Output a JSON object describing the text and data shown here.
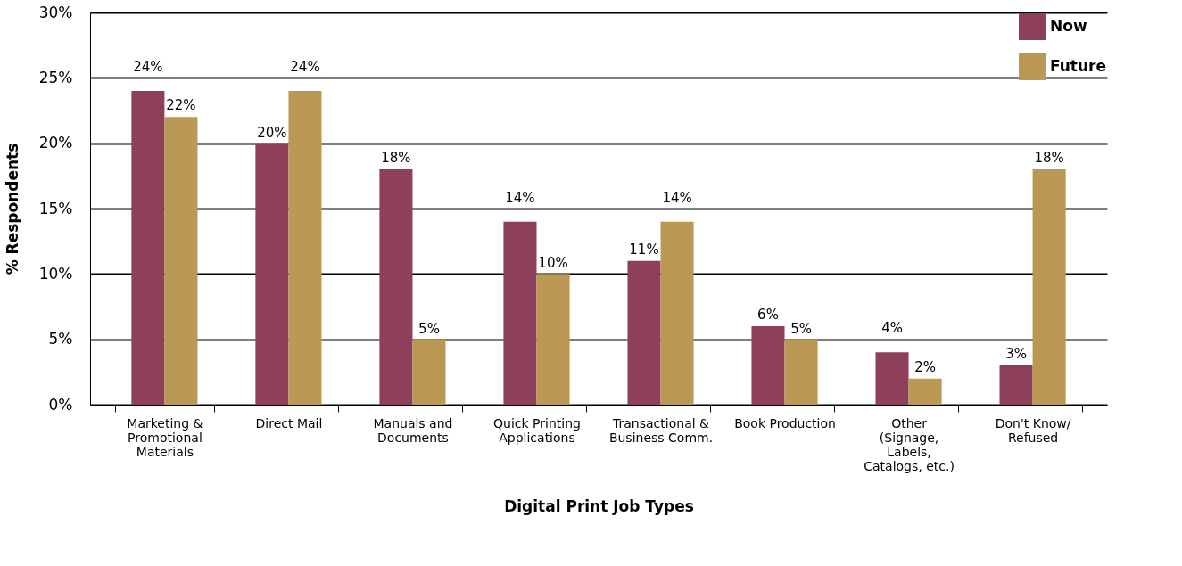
{
  "chart_data": {
    "type": "bar",
    "xlabel": "Digital Print Job Types",
    "ylabel": "% Respondents",
    "categories": [
      "Marketing &\nPromotional\nMaterials",
      "Direct Mail",
      "Manuals and\nDocuments",
      "Quick Printing\nApplications",
      "Transactional &\nBusiness Comm.",
      "Book Production",
      "Other\n(Signage,\nLabels,\nCatalogs, etc.)",
      "Don't Know/\nRefused"
    ],
    "series": [
      {
        "name": "Now",
        "color": "#8e3f5a",
        "values": [
          24,
          20,
          18,
          14,
          11,
          6,
          4,
          3
        ],
        "value_labels": [
          "24%",
          "20%",
          "18%",
          "14%",
          "11%",
          "6%",
          "4%",
          "3%"
        ]
      },
      {
        "name": "Future",
        "color": "#bb9955",
        "values": [
          22,
          24,
          5,
          10,
          14,
          5,
          2,
          18
        ],
        "value_labels": [
          "22%",
          "24%",
          "5%",
          "10%",
          "14%",
          "5%",
          "2%",
          "18%"
        ]
      }
    ],
    "ylim": [
      0,
      30
    ],
    "yticks": [
      {
        "value": 0,
        "label": "0%"
      },
      {
        "value": 5,
        "label": "5%"
      },
      {
        "value": 10,
        "label": "10%"
      },
      {
        "value": 15,
        "label": "15%"
      },
      {
        "value": 20,
        "label": "20%"
      },
      {
        "value": 25,
        "label": "25%"
      },
      {
        "value": 30,
        "label": "30%"
      }
    ],
    "grid": "y",
    "legend": "top right"
  }
}
